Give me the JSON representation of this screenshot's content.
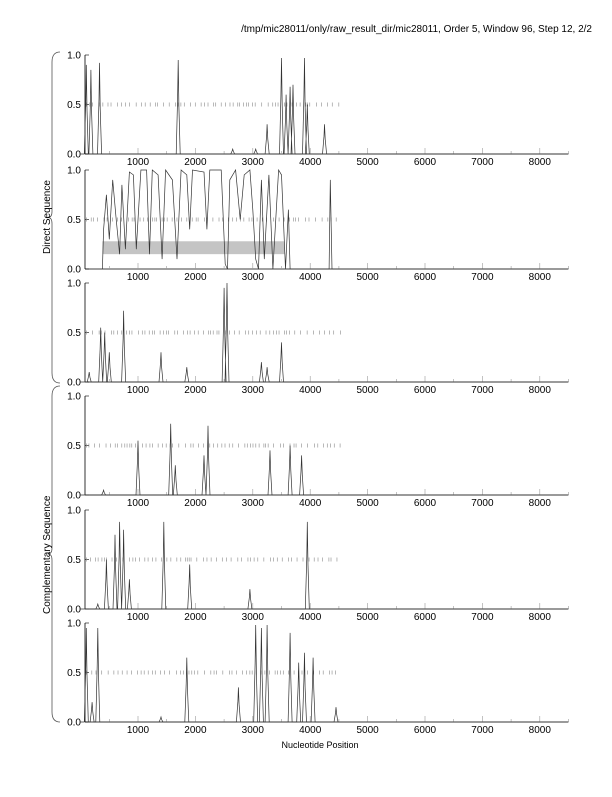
{
  "title": "/tmp/mic28011/only/raw_result_dir/mic28011, Order 5, Window 96, Step 12, 2/2",
  "xlabel": "Nucleotide Position",
  "group_labels": {
    "direct": "Direct Sequence",
    "complementary": "Complementary Sequence"
  },
  "chart_data": [
    {
      "type": "line",
      "group": "direct",
      "xlim": [
        0,
        8500
      ],
      "ylim": [
        0,
        1
      ],
      "yticks": [
        "0.0",
        "0.5",
        "1.0"
      ],
      "xticks": [
        "1000",
        "2000",
        "3000",
        "4000",
        "5000",
        "6000",
        "7000",
        "8000"
      ],
      "marks_range": [
        100,
        4500
      ],
      "peaks": [
        [
          100,
          0.9
        ],
        [
          180,
          0.85
        ],
        [
          330,
          0.92
        ],
        [
          1700,
          0.95
        ],
        [
          2650,
          0.05
        ],
        [
          3050,
          0.05
        ],
        [
          3250,
          0.3
        ],
        [
          3500,
          0.97
        ],
        [
          3580,
          0.6
        ],
        [
          3650,
          0.68
        ],
        [
          3700,
          0.7
        ],
        [
          3900,
          0.97
        ],
        [
          3950,
          0.5
        ],
        [
          4250,
          0.3
        ]
      ]
    },
    {
      "type": "line",
      "group": "direct",
      "xlim": [
        0,
        8500
      ],
      "ylim": [
        0,
        1
      ],
      "yticks": [
        "0.0",
        "0.5",
        "1.0"
      ],
      "xticks": [
        "1000",
        "2000",
        "3000",
        "4000",
        "5000",
        "6000",
        "7000",
        "8000"
      ],
      "marks_range": [
        100,
        4550
      ],
      "shade": [
        380,
        3550,
        0.15,
        0.28
      ],
      "line": [
        [
          380,
          0
        ],
        [
          400,
          0.4
        ],
        [
          450,
          0.75
        ],
        [
          500,
          0.3
        ],
        [
          560,
          0.9
        ],
        [
          620,
          0.5
        ],
        [
          680,
          0.15
        ],
        [
          720,
          0.85
        ],
        [
          780,
          0.2
        ],
        [
          850,
          0.98
        ],
        [
          920,
          0.95
        ],
        [
          970,
          0.2
        ],
        [
          1050,
          1
        ],
        [
          1150,
          1
        ],
        [
          1200,
          0.15
        ],
        [
          1250,
          1
        ],
        [
          1350,
          0.95
        ],
        [
          1420,
          0.1
        ],
        [
          1480,
          1
        ],
        [
          1600,
          0.9
        ],
        [
          1680,
          0.1
        ],
        [
          1750,
          1
        ],
        [
          1850,
          0.95
        ],
        [
          1900,
          0.4
        ],
        [
          1950,
          1
        ],
        [
          2150,
          0.98
        ],
        [
          2200,
          0.4
        ],
        [
          2250,
          1
        ],
        [
          2450,
          1
        ],
        [
          2520,
          0.05
        ],
        [
          2560,
          0
        ],
        [
          2600,
          0.9
        ],
        [
          2700,
          1
        ],
        [
          2780,
          0.5
        ],
        [
          2850,
          0.95
        ],
        [
          2950,
          1
        ],
        [
          3000,
          0.6
        ],
        [
          3050,
          0.1
        ],
        [
          3100,
          0
        ],
        [
          3150,
          0.9
        ],
        [
          3200,
          0.1
        ],
        [
          3280,
          0.95
        ],
        [
          3350,
          0
        ],
        [
          3450,
          1
        ],
        [
          3500,
          0.95
        ],
        [
          3570,
          0
        ],
        [
          3620,
          0.6
        ],
        [
          3650,
          0
        ],
        [
          4330,
          0
        ],
        [
          4350,
          0.9
        ],
        [
          4380,
          0
        ],
        [
          8500,
          0
        ]
      ]
    },
    {
      "type": "line",
      "group": "direct",
      "xlim": [
        0,
        8500
      ],
      "ylim": [
        0,
        1
      ],
      "yticks": [
        "0.0",
        "0.5",
        "1.0"
      ],
      "xticks": [
        "1000",
        "2000",
        "3000",
        "4000",
        "5000",
        "6000",
        "7000",
        "8000"
      ],
      "marks_range": [
        100,
        4550
      ],
      "peaks": [
        [
          150,
          0.1
        ],
        [
          350,
          0.55
        ],
        [
          420,
          0.5
        ],
        [
          500,
          0.3
        ],
        [
          750,
          0.72
        ],
        [
          1400,
          0.3
        ],
        [
          1850,
          0.15
        ],
        [
          2500,
          0.95
        ],
        [
          2550,
          1.0
        ],
        [
          3150,
          0.2
        ],
        [
          3250,
          0.15
        ],
        [
          3500,
          0.4
        ]
      ]
    },
    {
      "type": "line",
      "group": "complementary",
      "xlim": [
        0,
        8500
      ],
      "ylim": [
        0,
        1
      ],
      "yticks": [
        "0.0",
        "0.5",
        "1.0"
      ],
      "xticks": [
        "1000",
        "2000",
        "3000",
        "4000",
        "5000",
        "6000",
        "7000",
        "8000"
      ],
      "marks_range": [
        100,
        4550
      ],
      "peaks": [
        [
          400,
          0.05
        ],
        [
          1000,
          0.55
        ],
        [
          1570,
          0.72
        ],
        [
          1650,
          0.3
        ],
        [
          2150,
          0.4
        ],
        [
          2220,
          0.7
        ],
        [
          3300,
          0.45
        ],
        [
          3650,
          0.5
        ],
        [
          3850,
          0.4
        ]
      ]
    },
    {
      "type": "line",
      "group": "complementary",
      "xlim": [
        0,
        8500
      ],
      "ylim": [
        0,
        1
      ],
      "yticks": [
        "0.0",
        "0.5",
        "1.0"
      ],
      "xticks": [
        "1000",
        "2000",
        "3000",
        "4000",
        "5000",
        "6000",
        "7000",
        "8000"
      ],
      "marks_range": [
        100,
        4500
      ],
      "peaks": [
        [
          300,
          0.05
        ],
        [
          450,
          0.5
        ],
        [
          600,
          0.75
        ],
        [
          680,
          0.88
        ],
        [
          750,
          0.8
        ],
        [
          850,
          0.3
        ],
        [
          1450,
          0.88
        ],
        [
          1900,
          0.45
        ],
        [
          2950,
          0.2
        ],
        [
          3950,
          0.88
        ]
      ]
    },
    {
      "type": "line",
      "group": "complementary",
      "xlim": [
        0,
        8500
      ],
      "ylim": [
        0,
        1
      ],
      "yticks": [
        "0.0",
        "0.5",
        "1.0"
      ],
      "xticks": [
        "1000",
        "2000",
        "3000",
        "4000",
        "5000",
        "6000",
        "7000",
        "8000"
      ],
      "marks_range": [
        100,
        4500
      ],
      "peaks": [
        [
          100,
          0.95
        ],
        [
          200,
          0.2
        ],
        [
          300,
          0.95
        ],
        [
          1400,
          0.05
        ],
        [
          1850,
          0.65
        ],
        [
          2750,
          0.35
        ],
        [
          3050,
          0.98
        ],
        [
          3150,
          0.95
        ],
        [
          3250,
          0.98
        ],
        [
          3650,
          0.9
        ],
        [
          3800,
          0.6
        ],
        [
          3900,
          0.7
        ],
        [
          4050,
          0.65
        ],
        [
          4450,
          0.15
        ]
      ]
    }
  ]
}
